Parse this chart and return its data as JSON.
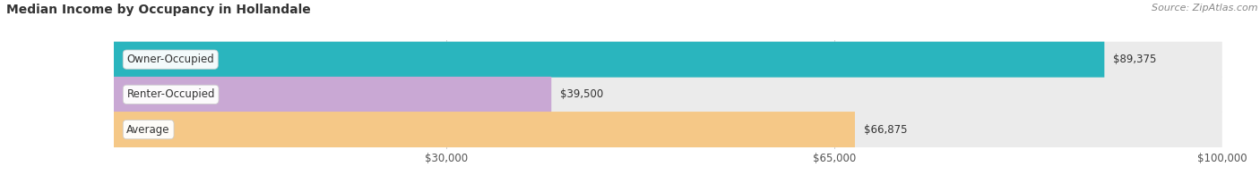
{
  "title": "Median Income by Occupancy in Hollandale",
  "source": "Source: ZipAtlas.com",
  "categories": [
    "Owner-Occupied",
    "Renter-Occupied",
    "Average"
  ],
  "values": [
    89375,
    39500,
    66875
  ],
  "bar_colors": [
    "#2ab5be",
    "#c9a8d4",
    "#f5c887"
  ],
  "bar_bg_color": "#ebebeb",
  "value_labels": [
    "$89,375",
    "$39,500",
    "$66,875"
  ],
  "xlim": [
    0,
    100000
  ],
  "xticks": [
    30000,
    65000,
    100000
  ],
  "xtick_labels": [
    "$30,000",
    "$65,000",
    "$100,000"
  ],
  "title_fontsize": 10,
  "label_fontsize": 8.5,
  "source_fontsize": 8,
  "bar_height": 0.52,
  "background_color": "#ffffff"
}
